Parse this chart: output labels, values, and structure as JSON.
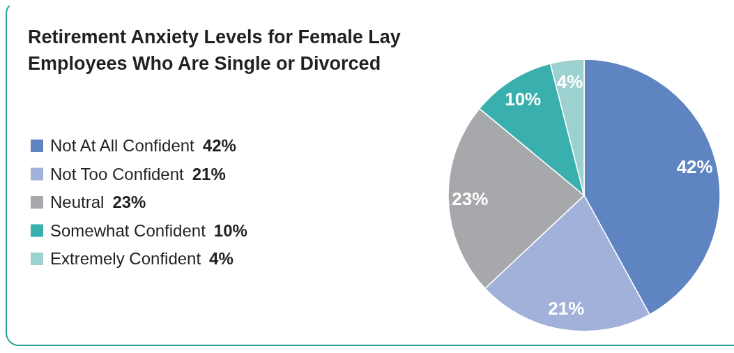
{
  "chart_data": {
    "type": "pie",
    "title": "Retirement Anxiety Levels for Female Lay Employees Who Are Single or Divorced",
    "categories": [
      "Not At All Confident",
      "Not Too Confident",
      "Neutral",
      "Somewhat Confident",
      "Extremely Confident"
    ],
    "values": [
      42,
      21,
      23,
      10,
      4
    ],
    "value_labels": [
      "42%",
      "21%",
      "23%",
      "10%",
      "4%"
    ],
    "colors": [
      "#5e84c2",
      "#a1b1da",
      "#a7a8ab",
      "#3ab0ae",
      "#9dd1d0"
    ],
    "legend": "left"
  }
}
